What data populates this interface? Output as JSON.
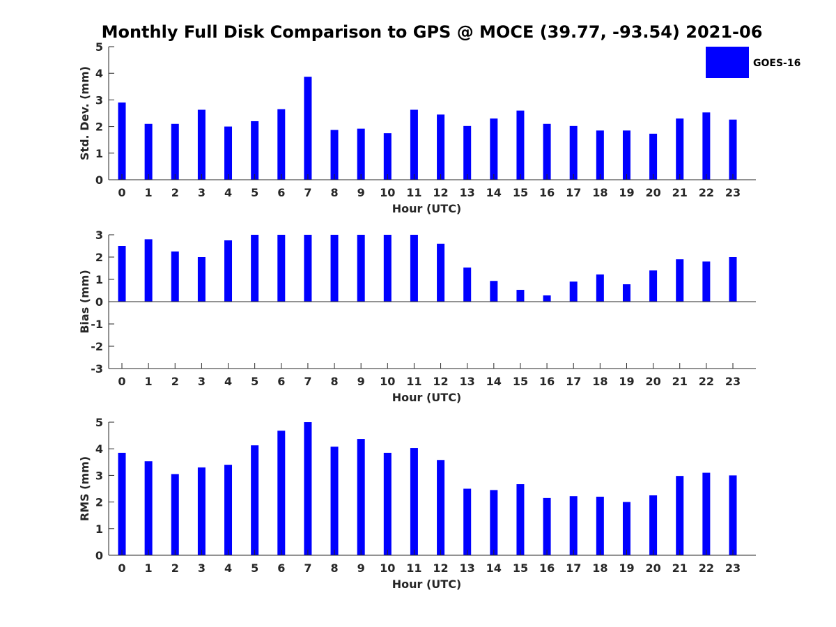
{
  "title": "Monthly Full Disk Comparison to GPS @ MOCE (39.77, -93.54) 2021-06",
  "legend": {
    "label": "GOES-16",
    "color": "#0000ff",
    "placement": "top-right"
  },
  "chart_data": [
    {
      "type": "bar",
      "ylabel": "Std. Dev. (mm)",
      "xlabel": "Hour (UTC)",
      "ylim": [
        0,
        5
      ],
      "yticks": [
        "0",
        "1",
        "2",
        "3",
        "4",
        "5"
      ],
      "categories": [
        "0",
        "1",
        "2",
        "3",
        "4",
        "5",
        "6",
        "7",
        "8",
        "9",
        "10",
        "11",
        "12",
        "13",
        "14",
        "15",
        "16",
        "17",
        "18",
        "19",
        "20",
        "21",
        "22",
        "23"
      ],
      "series": [
        {
          "name": "GOES-16",
          "color": "#0000ff",
          "values": [
            2.9,
            2.1,
            2.1,
            2.63,
            2.0,
            2.2,
            2.65,
            3.87,
            1.87,
            1.92,
            1.75,
            2.63,
            2.45,
            2.02,
            2.3,
            2.6,
            2.1,
            2.02,
            1.85,
            1.85,
            1.73,
            2.3,
            2.53,
            2.26
          ]
        }
      ]
    },
    {
      "type": "bar",
      "ylabel": "Bias (mm)",
      "xlabel": "Hour (UTC)",
      "ylim": [
        -3,
        3
      ],
      "yticks": [
        "-3",
        "-2",
        "-1",
        "0",
        "1",
        "2",
        "3"
      ],
      "categories": [
        "0",
        "1",
        "2",
        "3",
        "4",
        "5",
        "6",
        "7",
        "8",
        "9",
        "10",
        "11",
        "12",
        "13",
        "14",
        "15",
        "16",
        "17",
        "18",
        "19",
        "20",
        "21",
        "22",
        "23"
      ],
      "series": [
        {
          "name": "GOES-16",
          "color": "#0000ff",
          "values": [
            2.5,
            2.8,
            2.25,
            2.0,
            2.75,
            3.0,
            3.0,
            3.0,
            3.0,
            3.0,
            3.0,
            3.0,
            2.6,
            1.53,
            0.93,
            0.53,
            0.28,
            0.9,
            1.22,
            0.78,
            1.4,
            1.9,
            1.8,
            2.0
          ]
        }
      ]
    },
    {
      "type": "bar",
      "ylabel": "RMS (mm)",
      "xlabel": "Hour (UTC)",
      "ylim": [
        0,
        5
      ],
      "yticks": [
        "0",
        "1",
        "2",
        "3",
        "4",
        "5"
      ],
      "categories": [
        "0",
        "1",
        "2",
        "3",
        "4",
        "5",
        "6",
        "7",
        "8",
        "9",
        "10",
        "11",
        "12",
        "13",
        "14",
        "15",
        "16",
        "17",
        "18",
        "19",
        "20",
        "21",
        "22",
        "23"
      ],
      "series": [
        {
          "name": "GOES-16",
          "color": "#0000ff",
          "values": [
            3.85,
            3.53,
            3.05,
            3.3,
            3.4,
            4.13,
            4.68,
            5.0,
            4.08,
            4.37,
            3.85,
            4.03,
            3.58,
            2.5,
            2.45,
            2.67,
            2.15,
            2.22,
            2.2,
            2.0,
            2.25,
            2.98,
            3.1,
            3.0
          ]
        }
      ]
    }
  ]
}
